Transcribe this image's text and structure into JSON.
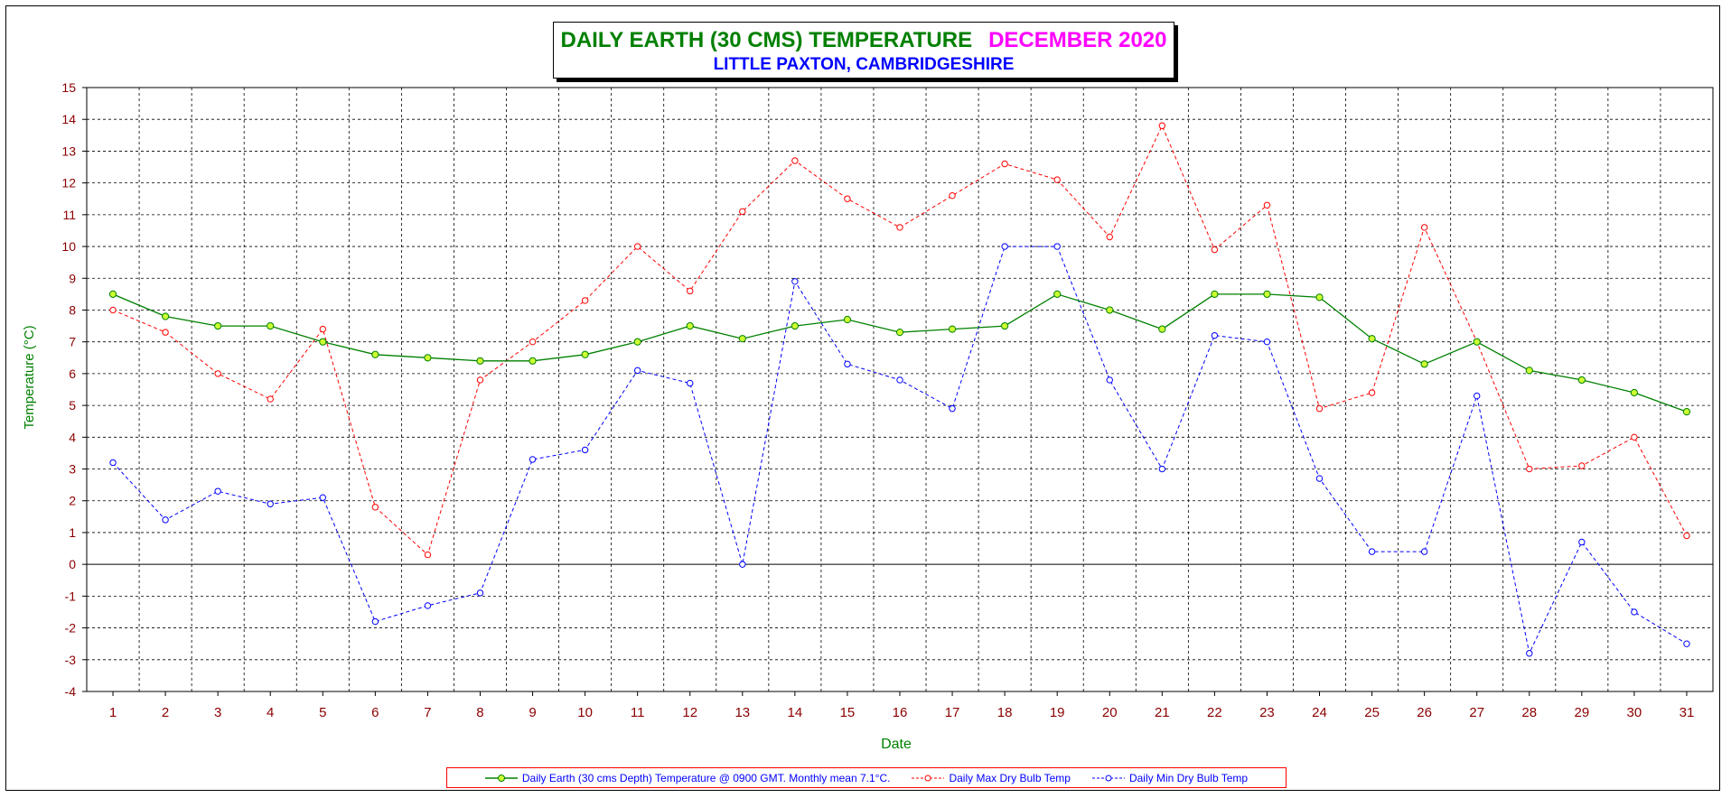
{
  "chart_data": {
    "type": "line",
    "title": "DAILY EARTH (30 CMS) TEMPERATURE",
    "title_month": "DECEMBER 2020",
    "subtitle": "LITTLE PAXTON, CAMBRIDGESHIRE",
    "xlabel": "Date",
    "ylabel": "Temperature (°C)",
    "ylim": [
      -4,
      15
    ],
    "yticks": [
      -4,
      -3,
      -2,
      -1,
      0,
      1,
      2,
      3,
      4,
      5,
      6,
      7,
      8,
      9,
      10,
      11,
      12,
      13,
      14,
      15
    ],
    "x": [
      1,
      2,
      3,
      4,
      5,
      6,
      7,
      8,
      9,
      10,
      11,
      12,
      13,
      14,
      15,
      16,
      17,
      18,
      19,
      20,
      21,
      22,
      23,
      24,
      25,
      26,
      27,
      28,
      29,
      30,
      31
    ],
    "grid": true,
    "legend_position": "bottom",
    "series": [
      {
        "name": "Daily Earth (30 cms Depth) Temperature @ 0900 GMT. Monthly mean 7.1°C.",
        "color": "#008000",
        "marker_color": "#ccff33",
        "style": "solid",
        "values": [
          8.5,
          7.8,
          7.5,
          7.5,
          7.0,
          6.6,
          6.5,
          6.4,
          6.4,
          6.6,
          7.0,
          7.5,
          7.1,
          7.5,
          7.7,
          7.3,
          7.4,
          7.5,
          8.5,
          8.0,
          7.4,
          8.5,
          8.5,
          8.4,
          7.1,
          6.3,
          7.0,
          6.1,
          5.8,
          5.4,
          4.8
        ]
      },
      {
        "name": "Daily Max Dry Bulb Temp",
        "color": "#ff0000",
        "style": "dashed",
        "values": [
          8.0,
          7.3,
          6.0,
          5.2,
          7.4,
          1.8,
          0.3,
          5.8,
          7.0,
          8.3,
          10.0,
          8.6,
          11.1,
          12.7,
          11.5,
          10.6,
          11.6,
          12.6,
          12.1,
          10.3,
          13.8,
          9.9,
          11.3,
          4.9,
          5.4,
          10.6,
          7.0,
          3.0,
          3.1,
          4.0,
          0.9
        ]
      },
      {
        "name": "Daily Min Dry Bulb Temp",
        "color": "#0000ff",
        "style": "dashed",
        "values": [
          3.2,
          1.4,
          2.3,
          1.9,
          2.1,
          -1.8,
          -1.3,
          -0.9,
          3.3,
          3.6,
          6.1,
          5.7,
          0.0,
          8.9,
          6.3,
          5.8,
          4.9,
          10.0,
          10.0,
          5.8,
          3.0,
          7.2,
          7.0,
          2.7,
          0.4,
          0.4,
          5.3,
          -2.8,
          0.7,
          -1.5,
          -2.5
        ]
      }
    ]
  }
}
